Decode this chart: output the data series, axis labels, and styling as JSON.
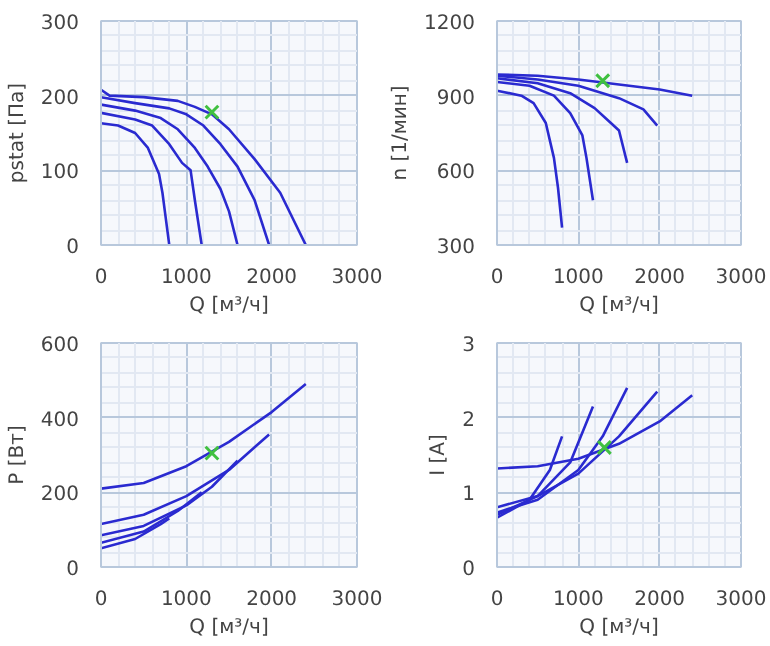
{
  "chart_data": [
    {
      "type": "line",
      "xlabel": "Q [м³/ч]",
      "ylabel": "pstat [Па]",
      "xlim": [
        0,
        3000
      ],
      "xticks": [
        0,
        1000,
        2000,
        3000
      ],
      "ylim": [
        0,
        300
      ],
      "yticks": [
        0,
        100,
        200,
        300
      ],
      "grid": true,
      "series": [
        {
          "color": "#2a2ad0",
          "x": [
            0,
            100,
            500,
            900,
            1100,
            1300,
            1500,
            1800,
            2100,
            2400
          ],
          "values": [
            208,
            200,
            198,
            193,
            185,
            175,
            155,
            115,
            70,
            0
          ]
        },
        {
          "color": "#2a2ad0",
          "x": [
            0,
            400,
            800,
            1000,
            1200,
            1400,
            1600,
            1800,
            1970
          ],
          "values": [
            198,
            190,
            183,
            175,
            160,
            135,
            105,
            60,
            0
          ]
        },
        {
          "color": "#2a2ad0",
          "x": [
            0,
            400,
            700,
            900,
            1100,
            1250,
            1400,
            1500,
            1600
          ],
          "values": [
            188,
            180,
            170,
            155,
            130,
            105,
            75,
            45,
            0
          ]
        },
        {
          "color": "#2a2ad0",
          "x": [
            0,
            400,
            600,
            800,
            950,
            1050,
            1100,
            1180
          ],
          "values": [
            177,
            168,
            160,
            135,
            110,
            100,
            60,
            0
          ]
        },
        {
          "color": "#2a2ad0",
          "x": [
            0,
            200,
            400,
            550,
            680,
            720,
            760,
            800
          ],
          "values": [
            163,
            160,
            150,
            130,
            95,
            70,
            35,
            0
          ]
        },
        {
          "type": "scatter",
          "marker": "cross",
          "color": "#40c040",
          "x": [
            1300
          ],
          "values": [
            178
          ]
        }
      ]
    },
    {
      "type": "line",
      "xlabel": "Q [м³/ч]",
      "ylabel": "n [1/мин]",
      "xlim": [
        0,
        3000
      ],
      "xticks": [
        0,
        1000,
        2000,
        3000
      ],
      "ylim": [
        300,
        1200
      ],
      "yticks": [
        300,
        600,
        900,
        1200
      ],
      "grid": true,
      "series": [
        {
          "color": "#2a2ad0",
          "x": [
            0,
            500,
            1000,
            1500,
            2000,
            2400
          ],
          "values": [
            985,
            980,
            965,
            945,
            925,
            900
          ]
        },
        {
          "color": "#2a2ad0",
          "x": [
            0,
            500,
            1000,
            1500,
            1800,
            1970
          ],
          "values": [
            980,
            965,
            940,
            890,
            845,
            780
          ]
        },
        {
          "color": "#2a2ad0",
          "x": [
            0,
            500,
            900,
            1200,
            1400,
            1500,
            1600
          ],
          "values": [
            970,
            950,
            910,
            850,
            790,
            760,
            630
          ]
        },
        {
          "color": "#2a2ad0",
          "x": [
            0,
            400,
            700,
            900,
            1050,
            1100,
            1180
          ],
          "values": [
            955,
            940,
            900,
            830,
            740,
            650,
            480
          ]
        },
        {
          "color": "#2a2ad0",
          "x": [
            0,
            300,
            450,
            600,
            700,
            750,
            800
          ],
          "values": [
            920,
            900,
            870,
            790,
            650,
            530,
            370
          ]
        },
        {
          "type": "scatter",
          "marker": "cross",
          "color": "#40c040",
          "x": [
            1300
          ],
          "values": [
            960
          ]
        }
      ]
    },
    {
      "type": "line",
      "xlabel": "Q [м³/ч]",
      "ylabel": "P [Вт]",
      "xlim": [
        0,
        3000
      ],
      "xticks": [
        0,
        1000,
        2000,
        3000
      ],
      "ylim": [
        0,
        600
      ],
      "yticks": [
        0,
        200,
        400,
        600
      ],
      "grid": true,
      "series": [
        {
          "color": "#2a2ad0",
          "x": [
            0,
            500,
            1000,
            1500,
            2000,
            2400
          ],
          "values": [
            210,
            225,
            270,
            335,
            415,
            490
          ]
        },
        {
          "color": "#2a2ad0",
          "x": [
            0,
            500,
            1000,
            1500,
            1970
          ],
          "values": [
            115,
            140,
            190,
            260,
            355
          ]
        },
        {
          "color": "#2a2ad0",
          "x": [
            0,
            500,
            1000,
            1300,
            1600
          ],
          "values": [
            85,
            110,
            165,
            215,
            285
          ]
        },
        {
          "color": "#2a2ad0",
          "x": [
            0,
            500,
            900,
            1180
          ],
          "values": [
            65,
            95,
            150,
            200
          ]
        },
        {
          "color": "#2a2ad0",
          "x": [
            0,
            400,
            700,
            800
          ],
          "values": [
            50,
            75,
            115,
            130
          ]
        },
        {
          "type": "scatter",
          "marker": "cross",
          "color": "#40c040",
          "x": [
            1300
          ],
          "values": [
            305
          ]
        }
      ]
    },
    {
      "type": "line",
      "xlabel": "Q [м³/ч]",
      "ylabel": "I [A]",
      "xlim": [
        0,
        3000
      ],
      "xticks": [
        0,
        1000,
        2000,
        3000
      ],
      "ylim": [
        0,
        3
      ],
      "yticks": [
        0,
        1,
        2,
        3
      ],
      "grid": true,
      "series": [
        {
          "color": "#2a2ad0",
          "x": [
            0,
            500,
            1000,
            1500,
            2000,
            2400
          ],
          "values": [
            1.32,
            1.35,
            1.45,
            1.65,
            1.95,
            2.3
          ]
        },
        {
          "color": "#2a2ad0",
          "x": [
            0,
            500,
            1000,
            1500,
            1970
          ],
          "values": [
            0.8,
            0.95,
            1.25,
            1.75,
            2.35
          ]
        },
        {
          "color": "#2a2ad0",
          "x": [
            0,
            500,
            1000,
            1300,
            1600
          ],
          "values": [
            0.73,
            0.9,
            1.3,
            1.75,
            2.4
          ]
        },
        {
          "color": "#2a2ad0",
          "x": [
            0,
            500,
            900,
            1180
          ],
          "values": [
            0.7,
            0.95,
            1.4,
            2.15
          ]
        },
        {
          "color": "#2a2ad0",
          "x": [
            0,
            400,
            650,
            800
          ],
          "values": [
            0.66,
            0.9,
            1.3,
            1.75
          ]
        },
        {
          "type": "scatter",
          "marker": "cross",
          "color": "#40c040",
          "x": [
            1320
          ],
          "values": [
            1.6
          ]
        }
      ]
    }
  ]
}
